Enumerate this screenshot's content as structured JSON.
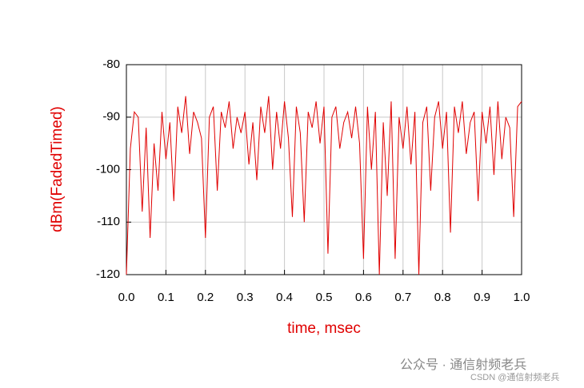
{
  "chart_data": {
    "type": "line",
    "x_label": "time, msec",
    "y_label": "dBm(FadedTimed)",
    "annotations": [
      "公众号 · 通信射频老兵",
      "CSDN @通信射频老兵"
    ],
    "x": [
      0,
      0.01,
      0.02,
      0.03,
      0.04,
      0.05,
      0.06,
      0.07,
      0.08,
      0.09,
      0.1,
      0.11,
      0.12,
      0.13,
      0.14,
      0.15,
      0.16,
      0.17,
      0.18,
      0.19,
      0.2,
      0.21,
      0.22,
      0.23,
      0.24,
      0.25,
      0.26,
      0.27,
      0.28,
      0.29,
      0.3,
      0.31,
      0.32,
      0.33,
      0.34,
      0.35,
      0.36,
      0.37,
      0.38,
      0.39,
      0.4,
      0.41,
      0.42,
      0.43,
      0.44,
      0.45,
      0.46,
      0.47,
      0.48,
      0.49,
      0.5,
      0.51,
      0.52,
      0.53,
      0.54,
      0.55,
      0.56,
      0.57,
      0.58,
      0.59,
      0.6,
      0.61,
      0.62,
      0.63,
      0.64,
      0.65,
      0.66,
      0.67,
      0.68,
      0.69,
      0.7,
      0.71,
      0.72,
      0.73,
      0.74,
      0.75,
      0.76,
      0.77,
      0.78,
      0.79,
      0.8,
      0.81,
      0.82,
      0.83,
      0.84,
      0.85,
      0.86,
      0.87,
      0.88,
      0.89,
      0.9,
      0.91,
      0.92,
      0.93,
      0.94,
      0.95,
      0.96,
      0.97,
      0.98,
      0.99,
      1
    ],
    "series": [
      {
        "name": "dBm(FadedTimed)",
        "color": "#e00000",
        "values": [
          -120,
          -96,
          -89,
          -90,
          -108,
          -92,
          -113,
          -95,
          -104,
          -89,
          -98,
          -91,
          -106,
          -88,
          -93,
          -86,
          -97,
          -89,
          -91,
          -94,
          -113,
          -90,
          -88,
          -104,
          -89,
          -92,
          -87,
          -96,
          -90,
          -93,
          -89,
          -99,
          -91,
          -102,
          -88,
          -93,
          -86,
          -100,
          -89,
          -96,
          -87,
          -94,
          -109,
          -88,
          -93,
          -110,
          -89,
          -92,
          -87,
          -95,
          -88,
          -116,
          -90,
          -88,
          -96,
          -91,
          -89,
          -94,
          -88,
          -95,
          -117,
          -88,
          -100,
          -89,
          -120,
          -91,
          -105,
          -87,
          -117,
          -90,
          -96,
          -88,
          -99,
          -89,
          -120,
          -91,
          -88,
          -104,
          -90,
          -87,
          -96,
          -89,
          -112,
          -88,
          -93,
          -87,
          -97,
          -91,
          -89,
          -106,
          -89,
          -95,
          -88,
          -101,
          -87,
          -98,
          -90,
          -92,
          -109,
          -88,
          -87
        ]
      }
    ],
    "xlim": [
      0,
      1
    ],
    "ylim": [
      -120,
      -80
    ],
    "xticks": [
      {
        "value": 0,
        "label": "0.0"
      },
      0.1,
      0.2,
      0.3,
      0.4,
      0.5,
      0.6,
      0.7,
      0.8,
      0.9,
      {
        "value": 1,
        "label": "1.0"
      }
    ],
    "yticks": [
      -120,
      -110,
      -100,
      -90,
      -80
    ],
    "grid": true
  }
}
